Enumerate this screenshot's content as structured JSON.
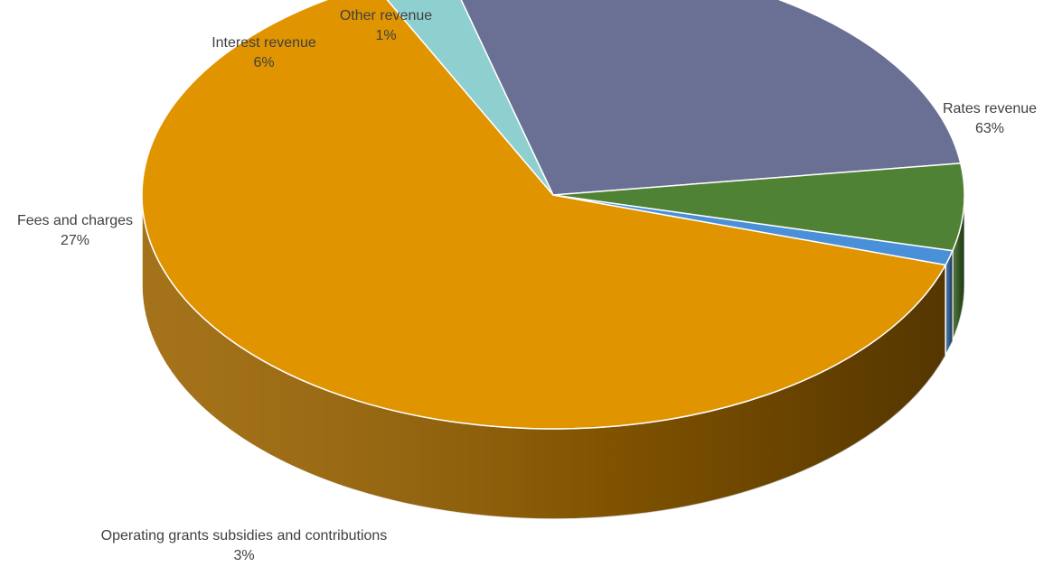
{
  "chart_data": {
    "type": "pie",
    "title": "",
    "categories": [
      "Rates revenue",
      "Operating grants subsidies and contributions",
      "Fees and charges",
      "Interest revenue",
      "Other revenue"
    ],
    "values": [
      63,
      3,
      27,
      6,
      1
    ],
    "value_labels": [
      "63%",
      "3%",
      "27%",
      "6%",
      "1%"
    ],
    "colors": [
      "#E09400",
      "#8ECFCF",
      "#6A7094",
      "#4F8234",
      "#4A90D9"
    ],
    "side_colors": [
      "#9A6300",
      "#5E9B9B",
      "#4E5477",
      "#3A6226",
      "#36679E"
    ],
    "style": "3d",
    "legend": "none",
    "data_labels": "outside"
  }
}
